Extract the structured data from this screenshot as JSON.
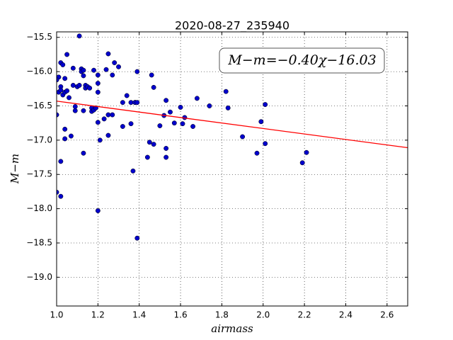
{
  "chart_data": {
    "type": "scatter",
    "title": "2020-08-27_235940",
    "x_label": "airmass",
    "y_label": "M−m",
    "annotation": "M−m=−0.40χ−16.03",
    "grid": true,
    "xlim": [
      1.0,
      2.7
    ],
    "ylim": [
      -19.42,
      -15.42
    ],
    "xticks": [
      {
        "value": 1.0,
        "label": "1.0"
      },
      {
        "value": 1.2,
        "label": "1.2"
      },
      {
        "value": 1.4,
        "label": "1.4"
      },
      {
        "value": 1.6,
        "label": "1.6"
      },
      {
        "value": 1.8,
        "label": "1.8"
      },
      {
        "value": 2.0,
        "label": "2.0"
      },
      {
        "value": 2.2,
        "label": "2.2"
      },
      {
        "value": 2.4,
        "label": "2.4"
      },
      {
        "value": 2.6,
        "label": "2.6"
      }
    ],
    "yticks": [
      {
        "value": -15.5,
        "label": "−15.5"
      },
      {
        "value": -16.0,
        "label": "−16.0"
      },
      {
        "value": -16.5,
        "label": "−16.5"
      },
      {
        "value": -17.0,
        "label": "−17.0"
      },
      {
        "value": -17.5,
        "label": "−17.5"
      },
      {
        "value": -18.0,
        "label": "−18.0"
      },
      {
        "value": -18.5,
        "label": "−18.5"
      },
      {
        "value": -19.0,
        "label": "−19.0"
      }
    ],
    "points": {
      "color": "#0000cc",
      "x": [
        1.0,
        1.01,
        1.0,
        1.01,
        1.02,
        1.02,
        1.03,
        1.02,
        1.03,
        1.04,
        1.05,
        1.04,
        1.05,
        1.06,
        1.04,
        1.04,
        1.02,
        1.0,
        1.02,
        1.07,
        1.08,
        1.08,
        1.09,
        1.09,
        1.1,
        1.11,
        1.11,
        1.12,
        1.12,
        1.13,
        1.13,
        1.14,
        1.14,
        1.15,
        1.13,
        1.13,
        1.16,
        1.17,
        1.17,
        1.18,
        1.19,
        1.18,
        1.2,
        1.2,
        1.2,
        1.2,
        1.21,
        1.2,
        1.23,
        1.24,
        1.25,
        1.25,
        1.25,
        1.27,
        1.27,
        1.28,
        1.3,
        1.32,
        1.32,
        1.34,
        1.36,
        1.36,
        1.37,
        1.38,
        1.38,
        1.39,
        1.39,
        1.39,
        1.44,
        1.45,
        1.46,
        1.47,
        1.47,
        1.5,
        1.52,
        1.53,
        1.53,
        1.53,
        1.55,
        1.57,
        1.6,
        1.61,
        1.62,
        1.66,
        1.68,
        1.74,
        1.82,
        1.83,
        1.9,
        1.97,
        1.99,
        2.01,
        2.01,
        2.19,
        2.21
      ],
      "values": [
        -16.63,
        -16.08,
        -16.12,
        -16.3,
        -16.22,
        -16.27,
        -16.34,
        -15.87,
        -15.9,
        -16.1,
        -15.75,
        -16.3,
        -16.28,
        -16.38,
        -16.84,
        -16.98,
        -17.31,
        -17.76,
        -17.82,
        -16.94,
        -15.95,
        -16.2,
        -16.51,
        -16.57,
        -16.22,
        -16.2,
        -15.48,
        -15.96,
        -16.0,
        -15.98,
        -16.06,
        -16.2,
        -16.24,
        -16.22,
        -16.57,
        -17.19,
        -16.24,
        -16.53,
        -16.58,
        -16.56,
        -16.53,
        -15.98,
        -16.05,
        -16.17,
        -16.3,
        -16.74,
        -17.0,
        -18.03,
        -16.69,
        -15.97,
        -15.74,
        -16.63,
        -16.93,
        -16.63,
        -16.05,
        -15.87,
        -15.93,
        -16.45,
        -16.8,
        -16.35,
        -16.45,
        -16.76,
        -17.45,
        -16.45,
        -16.45,
        -16.0,
        -16.45,
        -18.43,
        -17.25,
        -17.03,
        -16.05,
        -16.23,
        -17.06,
        -16.79,
        -16.64,
        -16.42,
        -17.12,
        -17.25,
        -16.59,
        -16.75,
        -16.52,
        -16.76,
        -16.67,
        -16.8,
        -16.39,
        -16.5,
        -16.29,
        -16.53,
        -16.95,
        -17.19,
        -16.73,
        -17.05,
        -16.48,
        -17.33,
        -17.18
      ]
    },
    "fit": {
      "color": "#ff0000",
      "x": [
        1.0,
        2.7
      ],
      "values": [
        -16.43,
        -17.11
      ]
    }
  }
}
